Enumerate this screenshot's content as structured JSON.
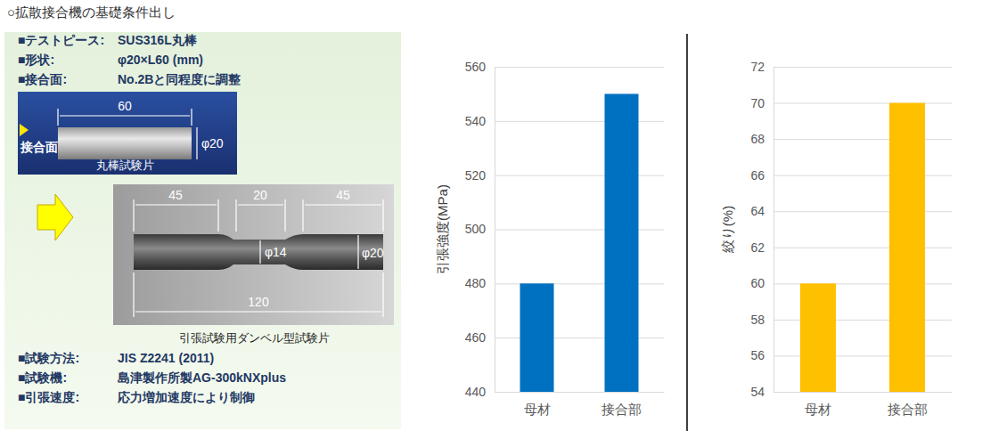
{
  "header": {
    "title": "○拡散接合機の基礎条件出し"
  },
  "specs_top": [
    {
      "label": "■テストピース:",
      "value": "SUS316L丸棒"
    },
    {
      "label": "■形状:",
      "value": "φ20×L60 (mm)"
    },
    {
      "label": "■接合面:",
      "value": "No.2Bと同程度に調整"
    }
  ],
  "photo1": {
    "length": "60",
    "diameter": "φ20",
    "joint": "接合面",
    "caption": "丸棒試験片"
  },
  "photo2": {
    "dims": [
      "45",
      "20",
      "45"
    ],
    "neck": "φ14",
    "diameter": "φ20",
    "total": "120",
    "caption": "引張試験用ダンベル型試験片"
  },
  "specs_bottom": [
    {
      "label": "■試験方法:",
      "value": "JIS Z2241 (2011)"
    },
    {
      "label": "■試験機:",
      "value": "島津製作所製AG-300kNXplus"
    },
    {
      "label": "■引張速度:",
      "value": "応力増加速度により制御"
    }
  ],
  "chart_data": [
    {
      "type": "bar",
      "ylabel": "引張強度(MPa)",
      "categories": [
        "母材",
        "接合部"
      ],
      "values": [
        480,
        550
      ],
      "color": "#0070c0",
      "ylim": [
        440,
        560
      ],
      "yticks": [
        440,
        460,
        480,
        500,
        520,
        540,
        560
      ],
      "grid": true
    },
    {
      "type": "bar",
      "ylabel": "絞り(%)",
      "categories": [
        "母材",
        "接合部"
      ],
      "values": [
        60,
        70
      ],
      "color": "#ffc000",
      "ylim": [
        54,
        72
      ],
      "yticks": [
        54,
        56,
        58,
        60,
        62,
        64,
        66,
        68,
        70,
        72
      ],
      "grid": true
    }
  ]
}
